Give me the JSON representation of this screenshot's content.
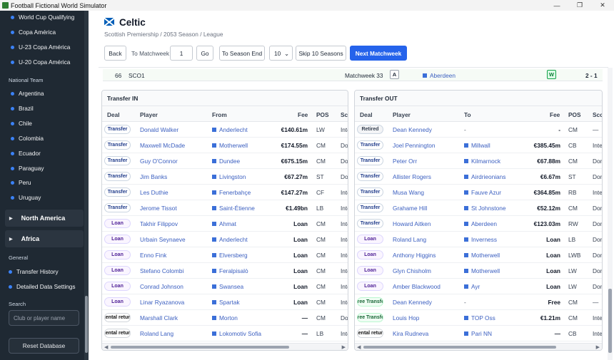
{
  "window": {
    "title": "Football Fictional World Simulator",
    "minimize": "—",
    "restore": "❐",
    "close": "✕"
  },
  "sidebar": {
    "top_items": [
      "World Cup Qualifying",
      "Copa América",
      "U-23 Copa América",
      "U-20 Copa América"
    ],
    "national_team_label": "National Team",
    "national_team_items": [
      "Argentina",
      "Brazil",
      "Chile",
      "Colombia",
      "Ecuador",
      "Paraguay",
      "Peru",
      "Uruguay"
    ],
    "groups": [
      "North America",
      "Africa"
    ],
    "general_label": "General",
    "general_items": [
      "Transfer History",
      "Detailed Data Settings"
    ],
    "search_label": "Search",
    "search_placeholder": "Club or player name",
    "reset_label": "Reset Database"
  },
  "header": {
    "club_name": "Celtic",
    "subtitle": "Scottish Premiership / 2053 Season / League"
  },
  "controls": {
    "back": "Back",
    "to_matchweek_label": "To Matchweek",
    "matchweek_value": "1",
    "go": "Go",
    "to_season_end": "To Season End",
    "seasons_value": "10",
    "skip_seasons": "Skip 10 Seasons",
    "next_matchweek": "Next Matchweek"
  },
  "match_row": {
    "number": "66",
    "competition": "SCO1",
    "matchweek": "Matchweek 33",
    "venue": "A",
    "opponent": "Aberdeen",
    "result": "W",
    "score": "2 - 1"
  },
  "transfer_in": {
    "title": "Transfer IN",
    "columns": {
      "deal": "Deal",
      "player": "Player",
      "club": "From",
      "fee": "Fee",
      "pos": "POS",
      "scope": "Sco"
    },
    "rows": [
      {
        "deal": "Transfer",
        "player": "Donald Walker",
        "club": "Anderlecht",
        "fee": "€140.61m",
        "pos": "LW",
        "scope": "Inte"
      },
      {
        "deal": "Transfer",
        "player": "Maxwell McDade",
        "club": "Motherwell",
        "fee": "€174.55m",
        "pos": "CM",
        "scope": "Dom"
      },
      {
        "deal": "Transfer",
        "player": "Guy O'Connor",
        "club": "Dundee",
        "fee": "€675.15m",
        "pos": "CM",
        "scope": "Dom"
      },
      {
        "deal": "Transfer",
        "player": "Jim Banks",
        "club": "Livingston",
        "fee": "€67.27m",
        "pos": "ST",
        "scope": "Dom"
      },
      {
        "deal": "Transfer",
        "player": "Les Duthie",
        "club": "Fenerbahçe",
        "fee": "€147.27m",
        "pos": "CF",
        "scope": "Inte"
      },
      {
        "deal": "Transfer",
        "player": "Jerome Tissot",
        "club": "Saint-Étienne",
        "fee": "€1.49bn",
        "pos": "LB",
        "scope": "Inte"
      },
      {
        "deal": "Loan",
        "player": "Takhir Filippov",
        "club": "Ahmat",
        "fee": "Loan",
        "pos": "CM",
        "scope": "Inte"
      },
      {
        "deal": "Loan",
        "player": "Urbain Seynaeve",
        "club": "Anderlecht",
        "fee": "Loan",
        "pos": "CM",
        "scope": "Inte"
      },
      {
        "deal": "Loan",
        "player": "Enno Fink",
        "club": "Elversberg",
        "fee": "Loan",
        "pos": "CM",
        "scope": "Inte"
      },
      {
        "deal": "Loan",
        "player": "Stefano Colombi",
        "club": "Feralpisalò",
        "fee": "Loan",
        "pos": "CM",
        "scope": "Inte"
      },
      {
        "deal": "Loan",
        "player": "Conrad Johnson",
        "club": "Swansea",
        "fee": "Loan",
        "pos": "CM",
        "scope": "Inte"
      },
      {
        "deal": "Loan",
        "player": "Linar Ryazanova",
        "club": "Spartak",
        "fee": "Loan",
        "pos": "CM",
        "scope": "Inte"
      },
      {
        "deal": "Rental return",
        "player": "Marshall Clark",
        "club": "Morton",
        "fee": "—",
        "pos": "CM",
        "scope": "Dom"
      },
      {
        "deal": "Rental return",
        "player": "Roland Lang",
        "club": "Lokomotiv Sofia",
        "fee": "—",
        "pos": "LB",
        "scope": "Inte"
      }
    ]
  },
  "transfer_out": {
    "title": "Transfer OUT",
    "columns": {
      "deal": "Deal",
      "player": "Player",
      "club": "To",
      "fee": "Fee",
      "pos": "POS",
      "scope": "Sco"
    },
    "rows": [
      {
        "deal": "Retired",
        "player": "Dean Kennedy",
        "club": "-",
        "fee": "-",
        "pos": "CM",
        "scope": "—"
      },
      {
        "deal": "Transfer",
        "player": "Joel Pennington",
        "club": "Millwall",
        "fee": "€385.45m",
        "pos": "CB",
        "scope": "Inte"
      },
      {
        "deal": "Transfer",
        "player": "Peter Orr",
        "club": "Kilmarnock",
        "fee": "€67.88m",
        "pos": "CM",
        "scope": "Dom"
      },
      {
        "deal": "Transfer",
        "player": "Allister Rogers",
        "club": "Airdrieonians",
        "fee": "€6.67m",
        "pos": "ST",
        "scope": "Dom"
      },
      {
        "deal": "Transfer",
        "player": "Musa Wang",
        "club": "Fauve Azur",
        "fee": "€364.85m",
        "pos": "RB",
        "scope": "Inte"
      },
      {
        "deal": "Transfer",
        "player": "Grahame Hill",
        "club": "St Johnstone",
        "fee": "€52.12m",
        "pos": "CM",
        "scope": "Dom"
      },
      {
        "deal": "Transfer",
        "player": "Howard Aitken",
        "club": "Aberdeen",
        "fee": "€123.03m",
        "pos": "RW",
        "scope": "Dom"
      },
      {
        "deal": "Loan",
        "player": "Roland Lang",
        "club": "Inverness",
        "fee": "Loan",
        "pos": "LB",
        "scope": "Dom"
      },
      {
        "deal": "Loan",
        "player": "Anthony Higgins",
        "club": "Motherwell",
        "fee": "Loan",
        "pos": "LWB",
        "scope": "Dom"
      },
      {
        "deal": "Loan",
        "player": "Glyn Chisholm",
        "club": "Motherwell",
        "fee": "Loan",
        "pos": "LW",
        "scope": "Dom"
      },
      {
        "deal": "Loan",
        "player": "Amber Blackwood",
        "club": "Ayr",
        "fee": "Loan",
        "pos": "LW",
        "scope": "Dom"
      },
      {
        "deal": "Free Transfer",
        "player": "Dean Kennedy",
        "club": "-",
        "fee": "Free",
        "pos": "CM",
        "scope": "—"
      },
      {
        "deal": "Free Transfer",
        "player": "Louis Hop",
        "club": "TOP Oss",
        "fee": "€1.21m",
        "pos": "CM",
        "scope": "Inte"
      },
      {
        "deal": "Rental return",
        "player": "Kira Rudneva",
        "club": "Pari NN",
        "fee": "—",
        "pos": "CB",
        "scope": "Inte"
      }
    ]
  },
  "colors": {
    "accent": "#2563eb",
    "sidebar_bg": "#1f2933",
    "link": "#3b5fc0",
    "club_square": "#3b6fd8"
  }
}
